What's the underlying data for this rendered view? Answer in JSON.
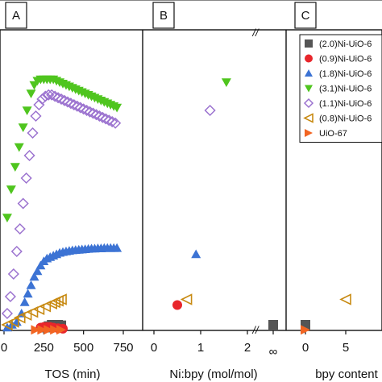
{
  "chart_data": [
    {
      "panel": "A",
      "type": "scatter",
      "xlabel": "TOS (min)",
      "x_ticks": [
        "0",
        "250",
        "500",
        "750"
      ],
      "xlim": [
        0,
        760
      ],
      "ylim": [
        0,
        1
      ],
      "series": [
        {
          "name": "(2.0)Ni-UiO-6",
          "marker": "square",
          "color": "#555555",
          "points": [
            [
              260,
              0.01
            ],
            [
              280,
              0.015
            ],
            [
              300,
              0.02
            ],
            [
              320,
              0.02
            ],
            [
              340,
              0.02
            ],
            [
              360,
              0.018
            ]
          ]
        },
        {
          "name": "(0.9)Ni-UiO-6",
          "marker": "circle",
          "color": "#e8262b",
          "points": [
            [
              230,
              0.01
            ],
            [
              250,
              0.012
            ],
            [
              270,
              0.012
            ],
            [
              290,
              0.012
            ],
            [
              310,
              0.01
            ],
            [
              340,
              0.008
            ],
            [
              370,
              0.006
            ]
          ]
        },
        {
          "name": "(1.8)Ni-UiO-6",
          "marker": "triangle-up",
          "color": "#3c73d4",
          "points": [
            [
              20,
              0.01
            ],
            [
              50,
              0.02
            ],
            [
              80,
              0.03
            ],
            [
              110,
              0.06
            ],
            [
              130,
              0.1
            ],
            [
              150,
              0.13
            ],
            [
              170,
              0.16
            ],
            [
              190,
              0.19
            ],
            [
              210,
              0.21
            ],
            [
              230,
              0.23
            ],
            [
              250,
              0.245
            ],
            [
              270,
              0.255
            ],
            [
              290,
              0.26
            ],
            [
              310,
              0.265
            ],
            [
              330,
              0.27
            ],
            [
              350,
              0.275
            ],
            [
              370,
              0.278
            ],
            [
              390,
              0.28
            ],
            [
              410,
              0.282
            ],
            [
              430,
              0.284
            ],
            [
              450,
              0.285
            ],
            [
              470,
              0.286
            ],
            [
              490,
              0.287
            ],
            [
              510,
              0.288
            ],
            [
              530,
              0.289
            ],
            [
              550,
              0.29
            ],
            [
              570,
              0.29
            ],
            [
              590,
              0.291
            ],
            [
              610,
              0.291
            ],
            [
              630,
              0.292
            ],
            [
              650,
              0.292
            ],
            [
              670,
              0.292
            ],
            [
              690,
              0.292
            ],
            [
              710,
              0.292
            ]
          ]
        },
        {
          "name": "(3.1)Ni-UiO-6",
          "marker": "triangle-down",
          "color": "#4fc51e",
          "points": [
            [
              20,
              0.4
            ],
            [
              45,
              0.5
            ],
            [
              70,
              0.58
            ],
            [
              95,
              0.65
            ],
            [
              120,
              0.72
            ],
            [
              145,
              0.78
            ],
            [
              170,
              0.84
            ],
            [
              190,
              0.87
            ],
            [
              210,
              0.885
            ],
            [
              230,
              0.89
            ],
            [
              250,
              0.89
            ],
            [
              270,
              0.89
            ],
            [
              290,
              0.89
            ],
            [
              310,
              0.89
            ],
            [
              330,
              0.885
            ],
            [
              350,
              0.88
            ],
            [
              370,
              0.875
            ],
            [
              390,
              0.87
            ],
            [
              410,
              0.865
            ],
            [
              430,
              0.86
            ],
            [
              450,
              0.855
            ],
            [
              470,
              0.85
            ],
            [
              490,
              0.845
            ],
            [
              510,
              0.84
            ],
            [
              530,
              0.835
            ],
            [
              550,
              0.83
            ],
            [
              570,
              0.825
            ],
            [
              590,
              0.82
            ],
            [
              610,
              0.815
            ],
            [
              630,
              0.81
            ],
            [
              650,
              0.805
            ],
            [
              670,
              0.8
            ],
            [
              690,
              0.795
            ],
            [
              710,
              0.79
            ]
          ]
        },
        {
          "name": "(1.1)Ni-UiO-6",
          "marker": "diamond-open",
          "color": "#9b72cf",
          "points": [
            [
              20,
              0.06
            ],
            [
              40,
              0.12
            ],
            [
              60,
              0.2
            ],
            [
              80,
              0.28
            ],
            [
              100,
              0.36
            ],
            [
              120,
              0.45
            ],
            [
              140,
              0.54
            ],
            [
              160,
              0.62
            ],
            [
              180,
              0.7
            ],
            [
              200,
              0.76
            ],
            [
              220,
              0.8
            ],
            [
              240,
              0.82
            ],
            [
              260,
              0.83
            ],
            [
              280,
              0.835
            ],
            [
              300,
              0.835
            ],
            [
              320,
              0.83
            ],
            [
              340,
              0.825
            ],
            [
              360,
              0.82
            ],
            [
              380,
              0.815
            ],
            [
              400,
              0.81
            ],
            [
              420,
              0.805
            ],
            [
              440,
              0.8
            ],
            [
              460,
              0.795
            ],
            [
              480,
              0.79
            ],
            [
              500,
              0.785
            ],
            [
              520,
              0.78
            ],
            [
              540,
              0.775
            ],
            [
              560,
              0.77
            ],
            [
              580,
              0.765
            ],
            [
              600,
              0.76
            ],
            [
              620,
              0.755
            ],
            [
              640,
              0.75
            ],
            [
              660,
              0.745
            ],
            [
              680,
              0.74
            ],
            [
              700,
              0.735
            ]
          ]
        },
        {
          "name": "(0.8)Ni-UiO-6",
          "marker": "triangle-left-open",
          "color": "#c88a12",
          "points": [
            [
              20,
              0.02
            ],
            [
              60,
              0.03
            ],
            [
              100,
              0.045
            ],
            [
              140,
              0.055
            ],
            [
              180,
              0.065
            ],
            [
              220,
              0.075
            ],
            [
              260,
              0.085
            ],
            [
              300,
              0.095
            ],
            [
              320,
              0.1
            ],
            [
              340,
              0.105
            ],
            [
              360,
              0.11
            ]
          ]
        },
        {
          "name": "UiO-67",
          "marker": "triangle-right",
          "color": "#f26522",
          "points": [
            [
              200,
              0.002
            ],
            [
              240,
              0.002
            ],
            [
              280,
              0.002
            ],
            [
              320,
              0.002
            ],
            [
              360,
              0.002
            ]
          ]
        }
      ]
    },
    {
      "panel": "B",
      "type": "scatter",
      "xlabel": "Ni:bpy (mol/mol)",
      "x_ticks": [
        "0",
        "1",
        "2",
        "∞"
      ],
      "xlim": [
        0,
        2.2
      ],
      "ylim": [
        0,
        1
      ],
      "series": [
        {
          "name": "(2.0)Ni-UiO-6",
          "marker": "square",
          "color": "#555555",
          "points": [
            [
              "∞",
              0.02
            ]
          ]
        },
        {
          "name": "(0.9)Ni-UiO-6",
          "marker": "circle",
          "color": "#e8262b",
          "points": [
            [
              0.5,
              0.09
            ]
          ]
        },
        {
          "name": "(1.8)Ni-UiO-6",
          "marker": "triangle-up",
          "color": "#3c73d4",
          "points": [
            [
              0.9,
              0.27
            ]
          ]
        },
        {
          "name": "(3.1)Ni-UiO-6",
          "marker": "triangle-down",
          "color": "#4fc51e",
          "points": [
            [
              1.55,
              0.88
            ]
          ]
        },
        {
          "name": "(1.1)Ni-UiO-6",
          "marker": "diamond-open",
          "color": "#9b72cf",
          "points": [
            [
              1.2,
              0.78
            ]
          ]
        },
        {
          "name": "(0.8)Ni-UiO-6",
          "marker": "triangle-left-open",
          "color": "#c88a12",
          "points": [
            [
              0.7,
              0.11
            ]
          ]
        }
      ]
    },
    {
      "panel": "C",
      "type": "scatter",
      "xlabel": "bpy content",
      "x_ticks": [
        "0",
        "5"
      ],
      "xlim": [
        -1.5,
        9
      ],
      "ylim": [
        0,
        1
      ],
      "series": [
        {
          "name": "(1.1)Ni-UiO-6",
          "marker": "diamond-open",
          "color": "#9b72cf",
          "points": [
            [
              5,
              0.78
            ]
          ]
        },
        {
          "name": "(0.8)Ni-UiO-6",
          "marker": "triangle-left-open",
          "color": "#c88a12",
          "points": [
            [
              5,
              0.11
            ]
          ]
        },
        {
          "name": "(2.0)Ni-UiO-6",
          "marker": "square",
          "color": "#555555",
          "points": [
            [
              0,
              0.02
            ]
          ]
        },
        {
          "name": "UiO-67",
          "marker": "triangle-right",
          "color": "#f26522",
          "points": [
            [
              0,
              0.002
            ]
          ]
        }
      ]
    }
  ],
  "legend": {
    "placement": "top-right",
    "entries": [
      "(2.0)Ni-UiO-6",
      "(0.9)Ni-UiO-6",
      "(1.8)Ni-UiO-6",
      "(3.1)Ni-UiO-6",
      "(1.1)Ni-UiO-6",
      "(0.8)Ni-UiO-6",
      "UiO-67"
    ]
  },
  "panel_labels": [
    "A",
    "B",
    "C"
  ],
  "axis_break_symbol": "//"
}
